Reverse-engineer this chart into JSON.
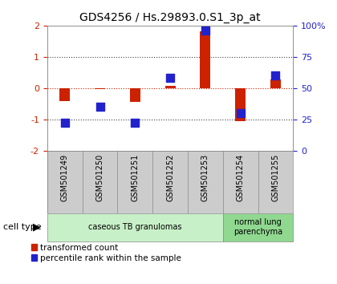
{
  "title": "GDS4256 / Hs.29893.0.S1_3p_at",
  "samples": [
    "GSM501249",
    "GSM501250",
    "GSM501251",
    "GSM501252",
    "GSM501253",
    "GSM501254",
    "GSM501255"
  ],
  "transformed_count": [
    -0.42,
    -0.04,
    -0.45,
    0.07,
    1.82,
    -1.05,
    0.28
  ],
  "percentile_rank": [
    22,
    35,
    22,
    58,
    96,
    30,
    60
  ],
  "ylim_left": [
    -2,
    2
  ],
  "ylim_right": [
    0,
    100
  ],
  "yticks_left": [
    -2,
    -1,
    0,
    1,
    2
  ],
  "yticks_right": [
    0,
    25,
    50,
    75,
    100
  ],
  "ytick_labels_right": [
    "0",
    "25",
    "50",
    "75",
    "100%"
  ],
  "red_color": "#CC2200",
  "blue_color": "#2222CC",
  "bar_width": 0.3,
  "blue_marker_size": 55,
  "cell_type_groups": [
    {
      "label": "caseous TB granulomas",
      "samples": [
        0,
        1,
        2,
        3,
        4
      ],
      "color": "#c8f0c8"
    },
    {
      "label": "normal lung\nparenchyma",
      "samples": [
        5,
        6
      ],
      "color": "#90d890"
    }
  ],
  "legend_red_label": "transformed count",
  "legend_blue_label": "percentile rank within the sample",
  "cell_type_label": "cell type",
  "background_color": "#ffffff",
  "plot_bg_color": "#ffffff",
  "tick_label_color_left": "#CC2200",
  "tick_label_color_right": "#2222CC",
  "dotted_line_color": "#444444",
  "zero_line_color": "#CC2200",
  "header_bg": "#cccccc",
  "sample_label_fontsize": 7,
  "title_fontsize": 10
}
